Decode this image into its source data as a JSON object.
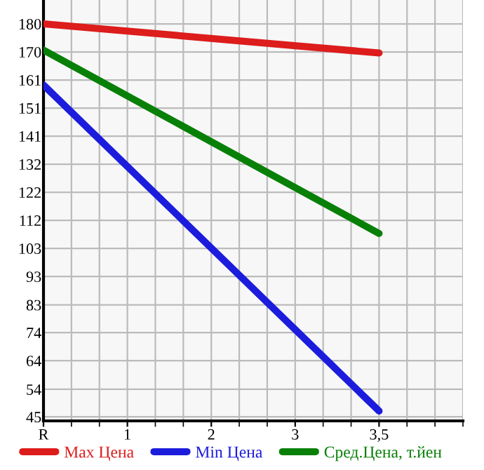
{
  "chart_data": {
    "type": "line",
    "categories": [
      "R",
      "1",
      "2",
      "3",
      "3,5"
    ],
    "series": [
      {
        "name": "Max Цена",
        "color": "#dd1c1c",
        "values": [
          180,
          null,
          null,
          null,
          170
        ]
      },
      {
        "name": "Min Цена",
        "color": "#1c1cdd",
        "values": [
          159,
          null,
          null,
          null,
          47
        ]
      },
      {
        "name": "Сред.Цена, т.йен",
        "color": "#088008",
        "values": [
          171,
          null,
          null,
          null,
          108
        ]
      }
    ],
    "ylim": [
      43.6,
      188.2
    ],
    "yticks": [
      {
        "value": 180,
        "label": "180"
      },
      {
        "value": 170.357,
        "label": "170"
      },
      {
        "value": 160.714,
        "label": "161"
      },
      {
        "value": 151.071,
        "label": "151"
      },
      {
        "value": 141.429,
        "label": "141"
      },
      {
        "value": 131.786,
        "label": "132"
      },
      {
        "value": 122.143,
        "label": "122"
      },
      {
        "value": 112.5,
        "label": "112"
      },
      {
        "value": 102.857,
        "label": "103"
      },
      {
        "value": 93.214,
        "label": "93"
      },
      {
        "value": 83.45,
        "label": "83"
      },
      {
        "value": 73.929,
        "label": "74"
      },
      {
        "value": 64.286,
        "label": "64"
      },
      {
        "value": 54.45,
        "label": "54"
      },
      {
        "value": 45,
        "label": "45"
      }
    ],
    "grid": true,
    "legend": "bottom",
    "marker": "none",
    "line_style": "solid"
  }
}
